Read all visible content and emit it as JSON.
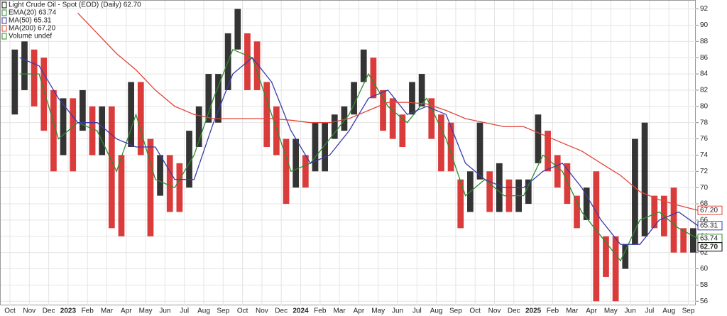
{
  "chart_data": {
    "type": "ohlc",
    "legend": [
      "Light Crude Oil - Spot (EOD) (Daily) 62.70",
      "EMA(20) 63.74",
      "MA(50) 65.31",
      "MA(200) 67.20",
      "Volume undef"
    ],
    "categories": [
      "Oct",
      "Nov",
      "Dec",
      "2023",
      "Feb",
      "Mar",
      "Apr",
      "May",
      "Jun",
      "Jul",
      "Aug",
      "Sep",
      "Oct",
      "Nov",
      "Dec",
      "2024",
      "Feb",
      "Mar",
      "Apr",
      "May",
      "Jun",
      "Jul",
      "Aug",
      "Sep",
      "Oct",
      "Nov",
      "Dec",
      "2025",
      "Feb",
      "Mar",
      "Apr",
      "May",
      "Jun",
      "Jul",
      "Aug",
      "Sep"
    ],
    "price": {
      "color_up": "#111111",
      "color_down": "#d41a1a",
      "high": [
        87,
        88,
        87,
        86,
        82,
        81,
        81,
        82,
        80,
        80,
        80,
        74,
        83,
        83,
        76,
        74,
        74,
        73,
        77,
        80,
        84,
        84,
        89,
        92,
        89,
        88,
        83,
        80,
        76,
        76,
        74,
        78,
        78,
        79,
        80,
        83,
        87,
        86,
        82,
        81,
        79,
        83,
        84,
        81,
        79,
        78,
        71,
        72,
        78,
        72,
        73,
        71,
        71,
        71,
        79,
        77,
        74,
        73,
        69,
        70,
        72,
        64,
        64,
        63,
        76,
        78,
        69,
        69,
        70,
        65,
        65
      ],
      "low": [
        79,
        82,
        80,
        77,
        72,
        74,
        72,
        77,
        74,
        74,
        65,
        64,
        75,
        74,
        64,
        69,
        67,
        67,
        70,
        75,
        78,
        78,
        82,
        87,
        82,
        82,
        75,
        74,
        68,
        70,
        70,
        72,
        72,
        76,
        77,
        79,
        83,
        81,
        77,
        76,
        75,
        79,
        80,
        76,
        72,
        72,
        65,
        67,
        71,
        67,
        67,
        67,
        67,
        68,
        73,
        72,
        70,
        68,
        65,
        66,
        56,
        59,
        56,
        60,
        63,
        64,
        65,
        64,
        62,
        62,
        62
      ],
      "tag": {
        "value": 62.7,
        "label": "62.70"
      }
    },
    "series": [
      {
        "name": "EMA(20)",
        "color": "#2e8b2e",
        "tag": {
          "value": 63.74,
          "label": "63.74"
        },
        "values": [
          84,
          84,
          76,
          78,
          77,
          72,
          79,
          71,
          70,
          74,
          81,
          87,
          86,
          79,
          72,
          73,
          76,
          79,
          84,
          80,
          78,
          81,
          76,
          69,
          71,
          69,
          69,
          74,
          72,
          67,
          64,
          61,
          66,
          67,
          65,
          63.74
        ]
      },
      {
        "name": "MA(50)",
        "color": "#3a3aaa",
        "tag": {
          "value": 65.31,
          "label": "65.31"
        },
        "values": [
          86,
          85,
          81,
          78,
          78,
          76,
          75,
          75,
          71,
          71,
          78,
          84,
          86,
          83,
          77,
          73,
          74,
          77,
          81,
          82,
          79,
          80,
          79,
          73,
          71,
          70,
          70,
          72,
          73,
          70,
          66,
          63,
          63,
          66,
          67,
          65.31
        ]
      },
      {
        "name": "MA(200)",
        "color": "#e0453a",
        "tag": {
          "value": 67.2,
          "label": "67.20"
        },
        "values": [
          null,
          null,
          null,
          91.5,
          89,
          86.5,
          84.5,
          82,
          80,
          79,
          78.5,
          78.5,
          78.5,
          78.5,
          78.3,
          78,
          78,
          78.5,
          79.5,
          80.5,
          80.5,
          80.3,
          79.5,
          78.5,
          78,
          77.5,
          77.5,
          76.5,
          75.5,
          74.5,
          73,
          71.5,
          69.5,
          68.5,
          67.8,
          67.2
        ]
      }
    ],
    "ylim": [
      55.5,
      93.1
    ],
    "yticks": [
      56,
      58,
      60,
      62,
      64,
      66,
      68,
      70,
      72,
      74,
      76,
      78,
      80,
      82,
      84,
      86,
      88,
      90,
      92
    ],
    "grid": true
  }
}
